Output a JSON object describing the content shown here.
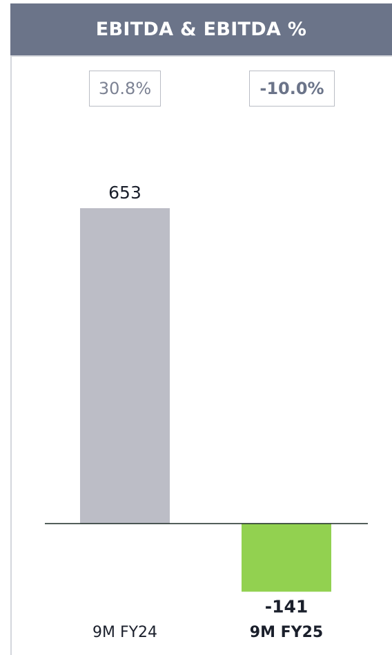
{
  "header": {
    "title": "EBITDA & EBITDA %"
  },
  "margins": [
    {
      "label": "30.8%",
      "emphasis": false
    },
    {
      "label": "-10.0%",
      "emphasis": true
    }
  ],
  "chart_data": {
    "type": "bar",
    "title": "EBITDA & EBITDA %",
    "categories": [
      "9M FY24",
      "9M FY25"
    ],
    "values": [
      653,
      -141
    ],
    "value_labels": [
      "653",
      "-141"
    ],
    "margin_labels": [
      "30.8%",
      "-10.0%"
    ],
    "ylim": [
      -141,
      653
    ],
    "grid": false,
    "legend": "none",
    "colors": [
      "#bcbdc6",
      "#92d150"
    ],
    "baseline_color": "#1a2a24",
    "emphasis": [
      false,
      true
    ]
  }
}
